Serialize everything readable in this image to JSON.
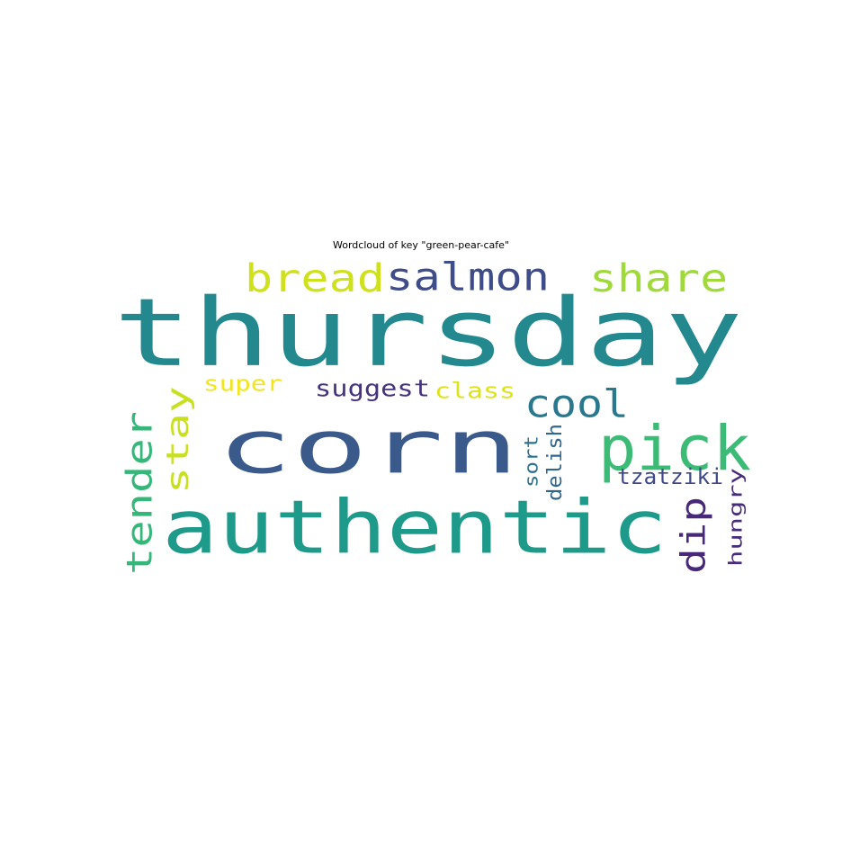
{
  "title": "Wordcloud of key \"green-pear-cafe\"",
  "chart_data": {
    "type": "wordcloud",
    "title": "Wordcloud of key \"green-pear-cafe\"",
    "colormap": "viridis",
    "words": [
      {
        "text": "thursday",
        "rank": 1,
        "color": "#23898e",
        "rotated": false
      },
      {
        "text": "corn",
        "rank": 2,
        "color": "#3b5a8c",
        "rotated": false
      },
      {
        "text": "authentic",
        "rank": 3,
        "color": "#1e9a8a",
        "rotated": false
      },
      {
        "text": "pick",
        "rank": 4,
        "color": "#3bbb75",
        "rotated": false
      },
      {
        "text": "tender",
        "rank": 5,
        "color": "#35b779",
        "rotated": true
      },
      {
        "text": "bread",
        "rank": 6,
        "color": "#cfe11c",
        "rotated": false
      },
      {
        "text": "salmon",
        "rank": 7,
        "color": "#3e4c8a",
        "rotated": false
      },
      {
        "text": "share",
        "rank": 8,
        "color": "#9fda3a",
        "rotated": false
      },
      {
        "text": "stay",
        "rank": 9,
        "color": "#c8e020",
        "rotated": true
      },
      {
        "text": "cool",
        "rank": 10,
        "color": "#2a788e",
        "rotated": false
      },
      {
        "text": "dip",
        "rank": 11,
        "color": "#482878",
        "rotated": true
      },
      {
        "text": "suggest",
        "rank": 12,
        "color": "#46327e",
        "rotated": false
      },
      {
        "text": "super",
        "rank": 13,
        "color": "#f2e51d",
        "rotated": false
      },
      {
        "text": "class",
        "rank": 14,
        "color": "#dde318",
        "rotated": false
      },
      {
        "text": "hungry",
        "rank": 15,
        "color": "#472c7a",
        "rotated": true
      },
      {
        "text": "tzatziki",
        "rank": 16,
        "color": "#3f4889",
        "rotated": false
      },
      {
        "text": "sort",
        "rank": 17,
        "color": "#2c728e",
        "rotated": true
      },
      {
        "text": "delish",
        "rank": 18,
        "color": "#31668e",
        "rotated": true
      }
    ]
  }
}
